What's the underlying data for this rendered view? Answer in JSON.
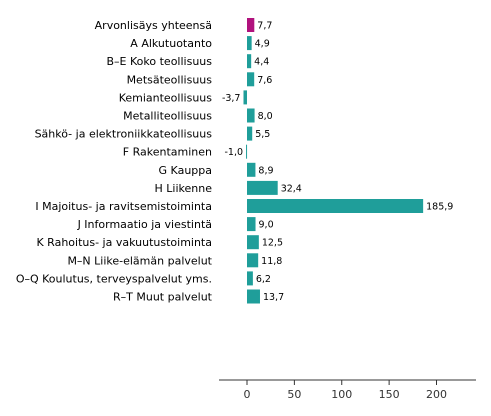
{
  "chart_data": {
    "type": "bar",
    "orientation": "horizontal",
    "categories": [
      "Arvonlisäys yhteensä",
      "A Alkutuotanto",
      "B–E Koko teollisuus",
      "Metsäteollisuus",
      "Kemianteollisuus",
      "Metalliteollisuus",
      "Sähkö- ja elektroniikkateollisuus",
      "F Rakentaminen",
      "G Kauppa",
      "H Liikenne",
      "I Majoitus- ja ravitsemistoiminta",
      "J Informaatio ja viestintä",
      "K Rahoitus- ja vakuutustoiminta",
      "M–N Liike-elämän palvelut",
      "O–Q Koulutus, terveyspalvelut yms.",
      "R–T Muut palvelut"
    ],
    "values": [
      7.7,
      4.9,
      4.4,
      7.6,
      -3.7,
      8.0,
      5.5,
      -1.0,
      8.9,
      32.4,
      185.9,
      9.0,
      12.5,
      11.8,
      6.2,
      13.7
    ],
    "value_labels": [
      "7,7",
      "4,9",
      "4,4",
      "7,6",
      "-3,7",
      "8,0",
      "5,5",
      "-1,0",
      "8,9",
      "32,4",
      "185,9",
      "9,0",
      "12,5",
      "11,8",
      "6,2",
      "13,7"
    ],
    "highlight_index": 0,
    "colors": {
      "default": "#1f9e9a",
      "highlight": "#b0127d"
    },
    "x_ticks": [
      0,
      50,
      100,
      150,
      200
    ],
    "x_tick_labels": [
      "0",
      "50",
      "100",
      "150",
      "200"
    ],
    "xlim": [
      -15,
      215
    ],
    "grid": false,
    "title": "",
    "xlabel": "",
    "ylabel": ""
  }
}
